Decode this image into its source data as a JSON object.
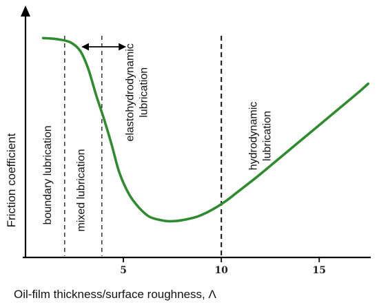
{
  "chart_data": {
    "type": "line",
    "title": "",
    "xlabel": "Oil-film thickness/surface roughness, Λ",
    "ylabel": "Friction coefficient",
    "xlim": [
      0,
      17.7
    ],
    "ylim": [
      0,
      1
    ],
    "x_ticks": [
      {
        "value": 5,
        "label": "5"
      },
      {
        "value": 10,
        "label": "10"
      },
      {
        "value": 15,
        "label": "15"
      }
    ],
    "y_ticks": [],
    "grid": false,
    "legend": "none",
    "series": [
      {
        "color": "#2e8b2e",
        "x": [
          0.9,
          1.6,
          2.3,
          2.8,
          3.2,
          3.6,
          4.0,
          4.4,
          4.8,
          5.3,
          5.8,
          6.3,
          6.8,
          7.3,
          7.8,
          8.3,
          8.8,
          9.3,
          9.8,
          10.3,
          10.8,
          11.3,
          12.0,
          13.0,
          14.0,
          15.0,
          16.0,
          17.0,
          17.5
        ],
        "y": [
          0.92,
          0.915,
          0.9,
          0.86,
          0.78,
          0.66,
          0.55,
          0.43,
          0.3,
          0.2,
          0.14,
          0.1,
          0.085,
          0.078,
          0.08,
          0.088,
          0.1,
          0.12,
          0.145,
          0.175,
          0.21,
          0.245,
          0.295,
          0.37,
          0.445,
          0.52,
          0.595,
          0.67,
          0.71
        ]
      }
    ],
    "dividers": [
      {
        "x": 2.0,
        "style": "dashed"
      },
      {
        "x": 3.9,
        "style": "dashed"
      },
      {
        "x": 10.0,
        "style": "dashed-bold"
      }
    ],
    "range_arrow": {
      "x_start": 2.9,
      "x_end": 5.1,
      "y": 1.03
    },
    "annotations": [
      {
        "lines": [
          "boundary lubrication"
        ],
        "x": 1.3,
        "y": 0.29
      },
      {
        "lines": [
          "mixed lubrication"
        ],
        "x": 3.0,
        "y": 0.22
      },
      {
        "lines": [
          "elastohydrodynamic",
          "lubrication"
        ],
        "x": 5.5,
        "y": 0.67
      },
      {
        "lines": [
          "hydrodynamic",
          "lubrication"
        ],
        "x": 11.8,
        "y": 0.47
      }
    ]
  }
}
